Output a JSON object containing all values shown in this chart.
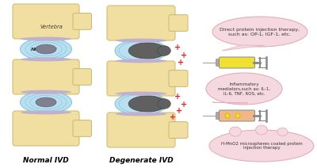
{
  "bg_color": "#ffffff",
  "label_normal": "Normal IVD",
  "label_degenerate": "Degenerate IVD",
  "vertebra_color": "#f0dfa0",
  "vertebra_edge": "#c8b870",
  "disc_color": "#b8e0f0",
  "disc_edge": "#80c0d8",
  "np_color": "#808090",
  "np_edge": "#606070",
  "degenerate_color": "#606060",
  "bubble_color": "#f5d8e0",
  "bubble_edge": "#e0b0b8",
  "bubble1_text": "Direct protein injection therapy,\nsuch as: OP-1, IGF-1, etc.",
  "bubble2_text": "Inflammatory\nmediators,such as: IL-1,\nIL-6, TNF, ROS, etc.",
  "bubble3_text": "H-MnO2 microspheres coated protein\ninjection therapy",
  "syringe1_body": "#f0e030",
  "syringe2_body": "#f0b888",
  "syringe_gray": "#aaaaaa",
  "syringe_dark": "#888888",
  "plus_color": "#e82020",
  "purple_disc": "#c0b0d0",
  "title_fontsize": 6.5,
  "annot_fontsize": 4.5,
  "bubble2_fontsize": 4.0
}
